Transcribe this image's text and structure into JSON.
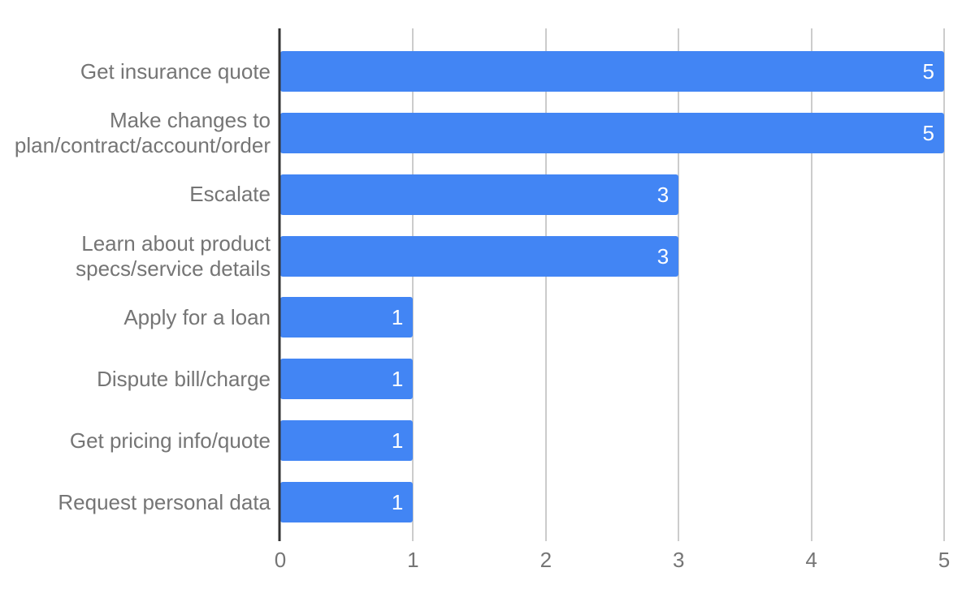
{
  "chart_data": {
    "type": "bar",
    "orientation": "horizontal",
    "title": "",
    "xlabel": "",
    "ylabel": "",
    "categories": [
      "Get insurance quote",
      "Make changes to plan/contract/account/order",
      "Escalate",
      "Learn about product specs/service details",
      "Apply for a loan",
      "Dispute bill/charge",
      "Get pricing info/quote",
      "Request personal data"
    ],
    "values": [
      5,
      5,
      3,
      3,
      1,
      1,
      1,
      1
    ],
    "value_labels": [
      "5",
      "5",
      "3",
      "3",
      "1",
      "1",
      "1",
      "1"
    ],
    "xlim": [
      0,
      5
    ],
    "x_ticks": [
      "0",
      "1",
      "2",
      "3",
      "4",
      "5"
    ],
    "grid": true,
    "legend": "none",
    "colors": {
      "bar": "#4285f4",
      "value_label": "#ffffff",
      "category_label": "#757575",
      "tick_label": "#757575",
      "gridline": "#cccccc",
      "baseline": "#333333",
      "background": "#ffffff"
    }
  }
}
